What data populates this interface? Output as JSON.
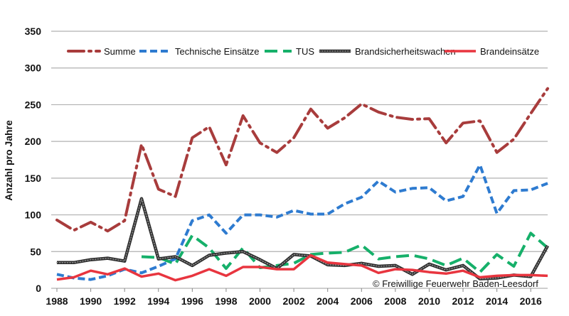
{
  "chart_data": {
    "type": "line",
    "title": "",
    "xlabel": "",
    "ylabel": "Anzahl pro Jahre",
    "xlim": [
      1988,
      2017
    ],
    "ylim": [
      0,
      350
    ],
    "yticks": [
      0,
      50,
      100,
      150,
      200,
      250,
      300,
      350
    ],
    "xticks": [
      1988,
      1990,
      1992,
      1994,
      1996,
      1998,
      2000,
      2002,
      2004,
      2006,
      2008,
      2010,
      2012,
      2014,
      2016
    ],
    "grid": "horizontal",
    "legend_position": "top",
    "credit": "© Freiwillige Feuerwehr Baden-Leesdorf",
    "series": [
      {
        "name": "Summe",
        "color": "#a83c3c",
        "dash": "dash-dot",
        "points": [
          [
            1988,
            93
          ],
          [
            1989,
            79
          ],
          [
            1990,
            90
          ],
          [
            1991,
            78
          ],
          [
            1992,
            92
          ],
          [
            1993,
            196
          ],
          [
            1994,
            135
          ],
          [
            1995,
            125
          ],
          [
            1996,
            205
          ],
          [
            1997,
            220
          ],
          [
            1998,
            168
          ],
          [
            1999,
            235
          ],
          [
            2000,
            198
          ],
          [
            2001,
            185
          ],
          [
            2002,
            205
          ],
          [
            2003,
            244
          ],
          [
            2004,
            218
          ],
          [
            2005,
            232
          ],
          [
            2006,
            251
          ],
          [
            2007,
            240
          ],
          [
            2008,
            233
          ],
          [
            2009,
            230
          ],
          [
            2010,
            231
          ],
          [
            2011,
            198
          ],
          [
            2012,
            225
          ],
          [
            2013,
            228
          ],
          [
            2014,
            185
          ],
          [
            2015,
            203
          ],
          [
            2016,
            238
          ],
          [
            2017,
            272
          ]
        ]
      },
      {
        "name": "Technische Einsätze",
        "color": "#2e7bd0",
        "dash": "dash",
        "points": [
          [
            1988,
            19
          ],
          [
            1989,
            14
          ],
          [
            1990,
            12
          ],
          [
            1991,
            17
          ],
          [
            1992,
            26
          ],
          [
            1993,
            21
          ],
          [
            1994,
            30
          ],
          [
            1995,
            40
          ],
          [
            1996,
            92
          ],
          [
            1997,
            100
          ],
          [
            1998,
            75
          ],
          [
            1999,
            100
          ],
          [
            2000,
            100
          ],
          [
            2001,
            97
          ],
          [
            2002,
            106
          ],
          [
            2003,
            101
          ],
          [
            2004,
            101
          ],
          [
            2005,
            115
          ],
          [
            2006,
            124
          ],
          [
            2007,
            146
          ],
          [
            2008,
            131
          ],
          [
            2009,
            136
          ],
          [
            2010,
            137
          ],
          [
            2011,
            119
          ],
          [
            2012,
            125
          ],
          [
            2013,
            168
          ],
          [
            2014,
            102
          ],
          [
            2015,
            133
          ],
          [
            2016,
            134
          ],
          [
            2017,
            143
          ]
        ]
      },
      {
        "name": "TUS",
        "color": "#16b06a",
        "dash": "longdash",
        "points": [
          [
            1993,
            43
          ],
          [
            1994,
            42
          ],
          [
            1995,
            33
          ],
          [
            1996,
            72
          ],
          [
            1997,
            55
          ],
          [
            1998,
            27
          ],
          [
            1999,
            55
          ],
          [
            2000,
            28
          ],
          [
            2001,
            31
          ],
          [
            2002,
            34
          ],
          [
            2003,
            46
          ],
          [
            2004,
            48
          ],
          [
            2005,
            49
          ],
          [
            2006,
            59
          ],
          [
            2007,
            40
          ],
          [
            2008,
            43
          ],
          [
            2009,
            45
          ],
          [
            2010,
            40
          ],
          [
            2011,
            31
          ],
          [
            2012,
            41
          ],
          [
            2013,
            22
          ],
          [
            2014,
            46
          ],
          [
            2015,
            30
          ],
          [
            2016,
            75
          ],
          [
            2017,
            55
          ]
        ]
      },
      {
        "name": "Brandsicherheitswachen",
        "color": "#2a2a2a",
        "dash": "dotted",
        "points": [
          [
            1988,
            35
          ],
          [
            1989,
            35
          ],
          [
            1990,
            39
          ],
          [
            1991,
            41
          ],
          [
            1992,
            37
          ],
          [
            1993,
            122
          ],
          [
            1994,
            40
          ],
          [
            1995,
            43
          ],
          [
            1996,
            31
          ],
          [
            1997,
            45
          ],
          [
            1998,
            48
          ],
          [
            1999,
            50
          ],
          [
            2000,
            39
          ],
          [
            2001,
            27
          ],
          [
            2002,
            46
          ],
          [
            2003,
            44
          ],
          [
            2004,
            32
          ],
          [
            2005,
            31
          ],
          [
            2006,
            34
          ],
          [
            2007,
            30
          ],
          [
            2008,
            31
          ],
          [
            2009,
            19
          ],
          [
            2010,
            33
          ],
          [
            2011,
            25
          ],
          [
            2012,
            31
          ],
          [
            2013,
            13
          ],
          [
            2014,
            14
          ],
          [
            2015,
            18
          ],
          [
            2016,
            16
          ],
          [
            2017,
            58
          ]
        ]
      },
      {
        "name": "Brandeinsätze",
        "color": "#e8353f",
        "dash": "solid",
        "points": [
          [
            1988,
            12
          ],
          [
            1989,
            15
          ],
          [
            1990,
            24
          ],
          [
            1991,
            19
          ],
          [
            1992,
            27
          ],
          [
            1993,
            16
          ],
          [
            1994,
            20
          ],
          [
            1995,
            11
          ],
          [
            1996,
            17
          ],
          [
            1997,
            26
          ],
          [
            1998,
            17
          ],
          [
            1999,
            29
          ],
          [
            2000,
            29
          ],
          [
            2001,
            26
          ],
          [
            2002,
            26
          ],
          [
            2003,
            45
          ],
          [
            2004,
            35
          ],
          [
            2005,
            33
          ],
          [
            2006,
            31
          ],
          [
            2007,
            21
          ],
          [
            2008,
            26
          ],
          [
            2009,
            25
          ],
          [
            2010,
            22
          ],
          [
            2011,
            20
          ],
          [
            2012,
            24
          ],
          [
            2013,
            15
          ],
          [
            2014,
            17
          ],
          [
            2015,
            18
          ],
          [
            2016,
            18
          ],
          [
            2017,
            17
          ]
        ]
      }
    ]
  }
}
